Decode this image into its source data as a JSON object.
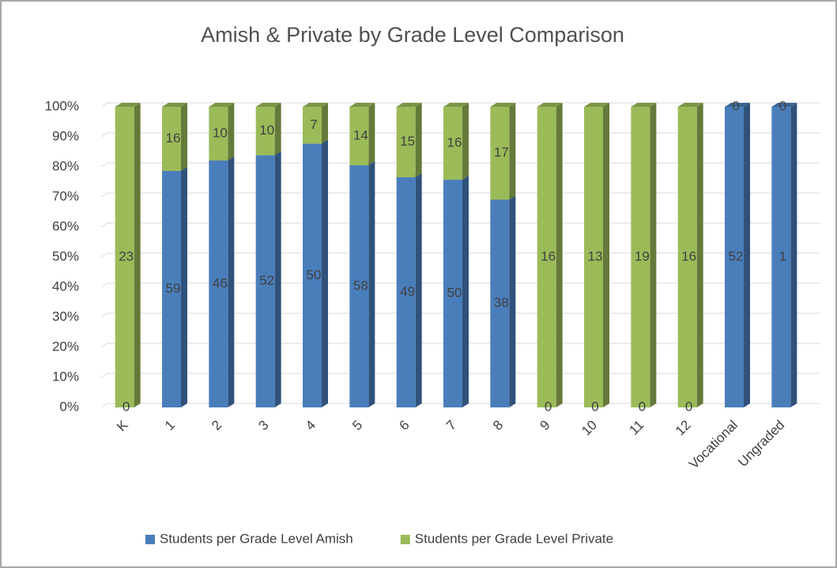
{
  "chart_data": {
    "type": "bar",
    "stacked": "percent",
    "title": "Amish & Private by Grade Level Comparison",
    "categories": [
      "K",
      "1",
      "2",
      "3",
      "4",
      "5",
      "6",
      "7",
      "8",
      "9",
      "10",
      "11",
      "12",
      "Vocational",
      "Ungraded"
    ],
    "series": [
      {
        "name": "Students per Grade Level Amish",
        "color": "#4a7ebb",
        "values": [
          0,
          59,
          46,
          52,
          50,
          58,
          49,
          50,
          38,
          0,
          0,
          0,
          0,
          52,
          1
        ]
      },
      {
        "name": "Students per Grade Level Private",
        "color": "#9bbb59",
        "values": [
          23,
          16,
          10,
          10,
          7,
          14,
          15,
          16,
          17,
          16,
          13,
          19,
          16,
          0,
          0
        ]
      }
    ],
    "ylim": [
      0,
      100
    ],
    "yticks": [
      {
        "value": 0,
        "label": "0%"
      },
      {
        "value": 10,
        "label": "10%"
      },
      {
        "value": 20,
        "label": "20%"
      },
      {
        "value": 30,
        "label": "30%"
      },
      {
        "value": 40,
        "label": "40%"
      },
      {
        "value": 50,
        "label": "50%"
      },
      {
        "value": 60,
        "label": "60%"
      },
      {
        "value": 70,
        "label": "70%"
      },
      {
        "value": 80,
        "label": "80%"
      },
      {
        "value": 90,
        "label": "90%"
      },
      {
        "value": 100,
        "label": "100%"
      }
    ],
    "grid": true,
    "legend": "bottom"
  }
}
